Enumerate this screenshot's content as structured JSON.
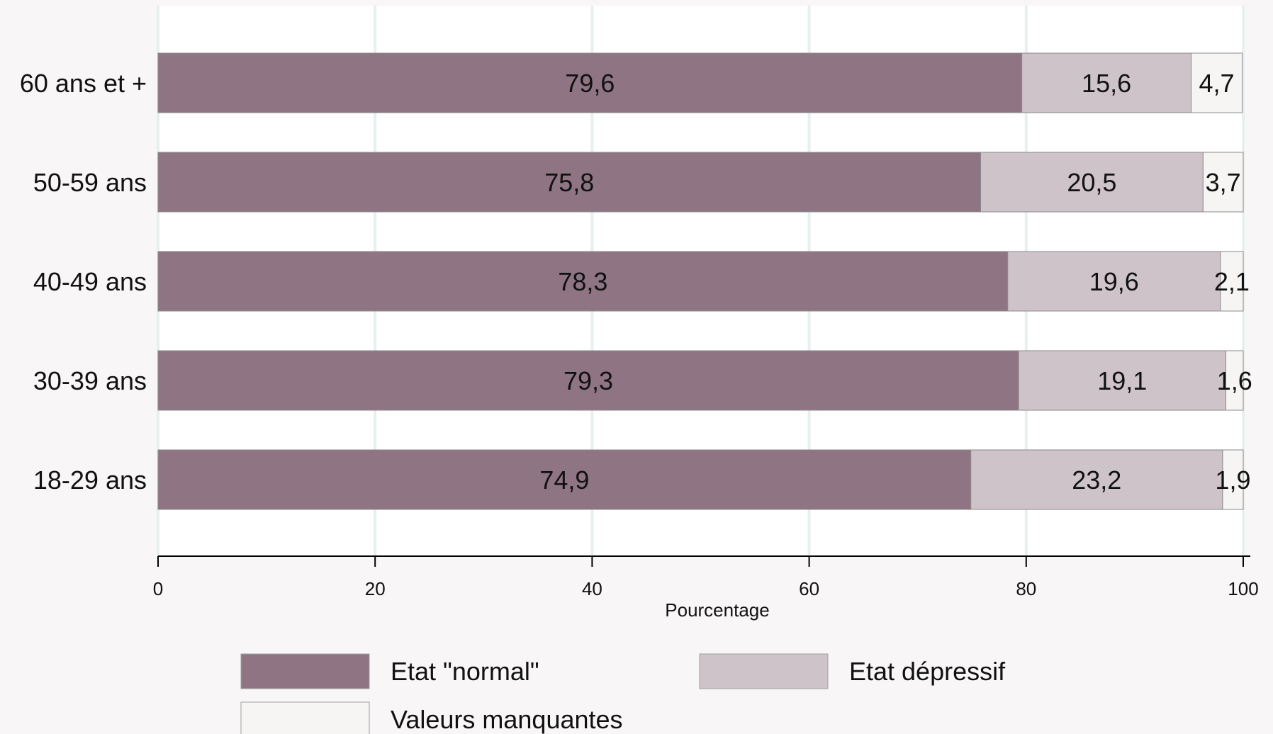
{
  "chart_data": {
    "type": "bar",
    "orientation": "horizontal",
    "stacked": true,
    "categories": [
      "60 ans et +",
      "50-59 ans",
      "40-49 ans",
      "30-39 ans",
      "18-29 ans"
    ],
    "series": [
      {
        "name": "Etat \"normal\"",
        "color": "#8f7584",
        "values": [
          79.6,
          75.8,
          78.3,
          79.3,
          74.9
        ],
        "labels": [
          "79,6",
          "75,8",
          "78,3",
          "79,3",
          "74,9"
        ]
      },
      {
        "name": "Etat dépressif",
        "color": "#cfc3ca",
        "values": [
          15.6,
          20.5,
          19.6,
          19.1,
          23.2
        ],
        "labels": [
          "15,6",
          "20,5",
          "19,6",
          "19,1",
          "23,2"
        ]
      },
      {
        "name": "Valeurs manquantes",
        "color": "#f7f5f3",
        "values": [
          4.7,
          3.7,
          2.1,
          1.6,
          1.9
        ],
        "labels": [
          "4,7",
          "3,7",
          "2,1",
          "1,6",
          "1,9"
        ]
      }
    ],
    "xlabel": "Pourcentage",
    "xlim": [
      0,
      100
    ],
    "xticks": [
      0,
      20,
      40,
      60,
      80,
      100
    ],
    "xtick_labels": [
      "0",
      "20",
      "40",
      "60",
      "80",
      "100"
    ],
    "grid": true,
    "legend_position": "bottom"
  }
}
